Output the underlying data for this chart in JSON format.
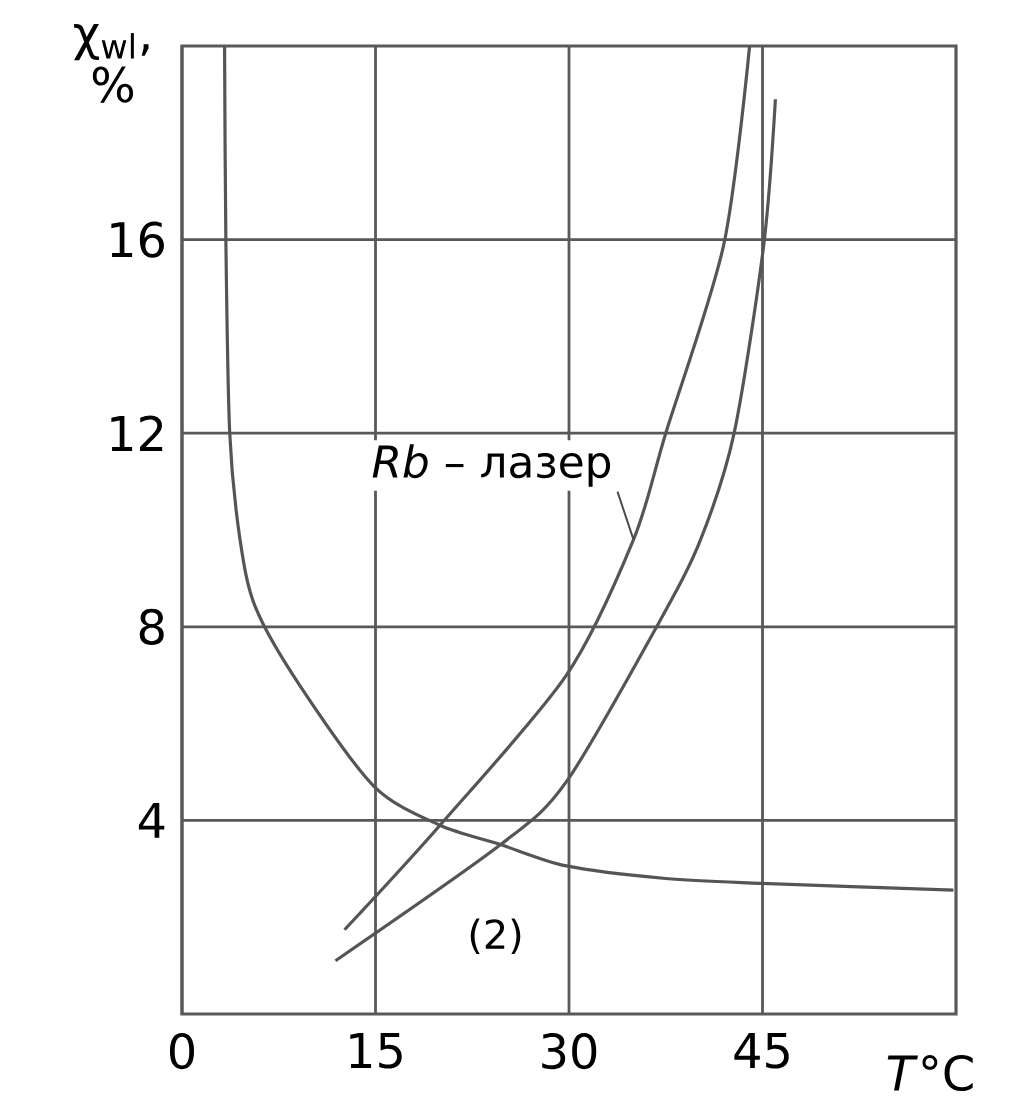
{
  "chart_data": {
    "type": "line",
    "xlabel": "*T*°C",
    "ylabel": "χ$_{wl}$, %",
    "xlim": [
      0,
      60
    ],
    "ylim": [
      0,
      20
    ],
    "xticks": [
      0,
      15,
      30,
      45
    ],
    "yticks": [
      4,
      8,
      12,
      16
    ],
    "grid": true,
    "series": [
      {
        "color": "#555555",
        "x": [
          3.3,
          3.4,
          3.7,
          4.5,
          5.7,
          9.1,
          14.9,
          20,
          24.7,
          29.8,
          37.5,
          44.8,
          59.8
        ],
        "values": [
          20,
          16,
          12,
          9.8,
          8.4,
          6.8,
          4.7,
          3.9,
          3.5,
          3.06,
          2.8,
          2.7,
          2.56
        ]
      },
      {
        "color": "#555555",
        "x": [
          12.6,
          20,
          29.8,
          35,
          37.5,
          42,
          44
        ],
        "values": [
          1.74,
          3.9,
          7.0,
          9.8,
          12,
          15.9,
          20
        ]
      },
      {
        "color": "#555555",
        "x": [
          11.9,
          24.7,
          29.8,
          37,
          40.2,
          42.8,
          45.1,
          46
        ],
        "values": [
          1.1,
          3.5,
          4.8,
          8.1,
          9.8,
          12,
          15.9,
          18.9
        ]
      }
    ],
    "annotations": [
      {
        "text": "*Rb* – лазер",
        "x": 35,
        "y": 9.8
      },
      {
        "text": "(2)",
        "x": 21,
        "y": 2.6
      }
    ]
  }
}
